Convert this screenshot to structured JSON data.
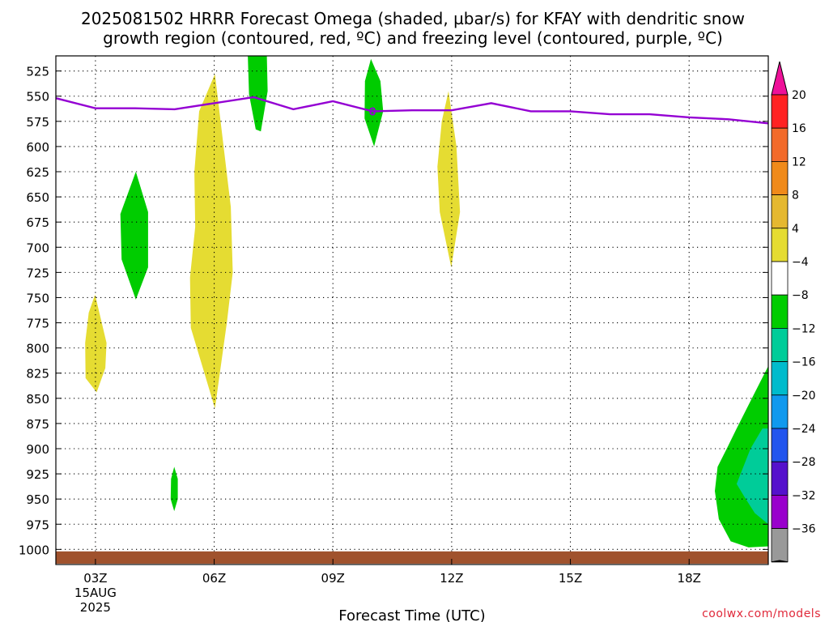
{
  "chart_data": {
    "type": "heatmap",
    "title_lines": [
      "2025081502 HRRR Forecast Omega (shaded, µbar/s) for KFAY with dendritic snow",
      "growth region (contoured, red, ºC) and freezing level (contoured, purple, ºC)"
    ],
    "xlabel": "Forecast Time (UTC)",
    "credit": "coolwx.com/models",
    "x_unit": "hours UTC on 15AUG2025",
    "xlim": [
      2,
      20
    ],
    "x_ticks": [
      {
        "value": 3,
        "label": "03Z",
        "sub": [
          "15AUG",
          "2025"
        ]
      },
      {
        "value": 6,
        "label": "06Z",
        "sub": []
      },
      {
        "value": 9,
        "label": "09Z",
        "sub": []
      },
      {
        "value": 12,
        "label": "12Z",
        "sub": []
      },
      {
        "value": 15,
        "label": "15Z",
        "sub": []
      },
      {
        "value": 18,
        "label": "18Z",
        "sub": []
      }
    ],
    "y_unit": "hPa",
    "ylim": [
      1015,
      510
    ],
    "y_ticks": [
      525,
      550,
      575,
      600,
      625,
      650,
      675,
      700,
      725,
      750,
      775,
      800,
      825,
      850,
      875,
      900,
      925,
      950,
      975,
      1000
    ],
    "grid": true,
    "surface_color": "#a0522d",
    "freezing_level": {
      "label": "0",
      "label_at": [
        10,
        565
      ],
      "color": "#9400d3",
      "points": [
        [
          2,
          552
        ],
        [
          3,
          562
        ],
        [
          4,
          562
        ],
        [
          5,
          563
        ],
        [
          6,
          557
        ],
        [
          7,
          551
        ],
        [
          8,
          563
        ],
        [
          9,
          555
        ],
        [
          10,
          565
        ],
        [
          11,
          564
        ],
        [
          12,
          564
        ],
        [
          13,
          557
        ],
        [
          14,
          565
        ],
        [
          15,
          565
        ],
        [
          16,
          568
        ],
        [
          17,
          568
        ],
        [
          18,
          571
        ],
        [
          19,
          573
        ],
        [
          20,
          577
        ]
      ]
    },
    "omega_regions": [
      {
        "value_range": [
          4,
          8
        ],
        "color": "#e5dc32",
        "points": [
          [
            2.99,
            747
          ],
          [
            3.28,
            795
          ],
          [
            3.25,
            820
          ],
          [
            3.03,
            844
          ],
          [
            2.75,
            830
          ],
          [
            2.74,
            795
          ],
          [
            2.83,
            765
          ]
        ]
      },
      {
        "value_range": [
          -8,
          -4
        ],
        "color": "#00cc00",
        "points": [
          [
            4.02,
            625
          ],
          [
            4.33,
            665
          ],
          [
            4.33,
            720
          ],
          [
            4.02,
            752
          ],
          [
            3.66,
            712
          ],
          [
            3.63,
            667
          ]
        ]
      },
      {
        "value_range": [
          4,
          8
        ],
        "color": "#e5dc32",
        "points": [
          [
            6.02,
            528
          ],
          [
            6.42,
            660
          ],
          [
            6.47,
            725
          ],
          [
            6.32,
            775
          ],
          [
            6.02,
            860
          ],
          [
            5.41,
            780
          ],
          [
            5.39,
            730
          ],
          [
            5.52,
            680
          ],
          [
            5.5,
            625
          ],
          [
            5.62,
            565
          ]
        ]
      },
      {
        "value_range": [
          -8,
          -4
        ],
        "color": "#00cc00",
        "points": [
          [
            4.99,
            918
          ],
          [
            5.08,
            930
          ],
          [
            5.08,
            950
          ],
          [
            4.99,
            962
          ],
          [
            4.9,
            950
          ],
          [
            4.91,
            930
          ]
        ]
      },
      {
        "value_range": [
          -8,
          -4
        ],
        "color": "#00cc00",
        "points": [
          [
            6.85,
            510
          ],
          [
            7.33,
            510
          ],
          [
            7.35,
            545
          ],
          [
            7.18,
            585
          ],
          [
            7.05,
            583
          ],
          [
            6.88,
            548
          ]
        ]
      },
      {
        "value_range": [
          -8,
          -4
        ],
        "color": "#00cc00",
        "points": [
          [
            9.96,
            513
          ],
          [
            10.2,
            535
          ],
          [
            10.27,
            565
          ],
          [
            10.04,
            600
          ],
          [
            9.8,
            572
          ],
          [
            9.81,
            535
          ]
        ]
      },
      {
        "value_range": [
          4,
          8
        ],
        "color": "#e5dc32",
        "points": [
          [
            11.92,
            545
          ],
          [
            12.12,
            600
          ],
          [
            12.21,
            665
          ],
          [
            11.99,
            720
          ],
          [
            11.7,
            665
          ],
          [
            11.64,
            620
          ],
          [
            11.75,
            575
          ]
        ]
      },
      {
        "value_range": [
          -8,
          -4
        ],
        "color": "#00cc00",
        "points": [
          [
            20,
            818
          ],
          [
            20,
            997
          ],
          [
            19.5,
            998
          ],
          [
            19.05,
            992
          ],
          [
            18.75,
            970
          ],
          [
            18.65,
            942
          ],
          [
            18.72,
            918
          ],
          [
            18.95,
            900
          ],
          [
            19.2,
            880
          ],
          [
            19.65,
            845
          ]
        ]
      },
      {
        "value_range": [
          -12,
          -8
        ],
        "color": "#00cc99",
        "points": [
          [
            20,
            880
          ],
          [
            20,
            975
          ],
          [
            19.66,
            964
          ],
          [
            19.4,
            948
          ],
          [
            19.2,
            935
          ],
          [
            19.55,
            900
          ],
          [
            19.85,
            880
          ]
        ]
      }
    ],
    "colorbar": {
      "labels": [
        "20",
        "16",
        "12",
        "8",
        "4",
        "−4",
        "−8",
        "−12",
        "−16",
        "−20",
        "−24",
        "−28",
        "−32",
        "−36"
      ],
      "colors": [
        "#ff2222",
        "#f26a2a",
        "#f08a1a",
        "#e5b830",
        "#e5dc32",
        "#ffffff",
        "#00cc00",
        "#00cc99",
        "#00bbcc",
        "#1199ee",
        "#2255ee",
        "#5511cc",
        "#9900cc",
        "#999999"
      ],
      "top_color": "#ee1199",
      "bottom_color": "#000000"
    }
  }
}
